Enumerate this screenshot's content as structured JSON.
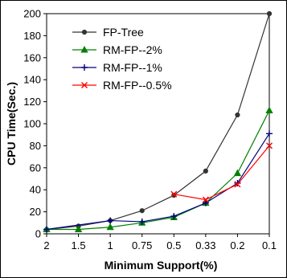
{
  "chart_data": {
    "type": "line",
    "title": "",
    "xlabel": "Minimum Support(%)",
    "ylabel": "CPU Time(Sec.)",
    "categories": [
      "2",
      "1.5",
      "1",
      "0.75",
      "0.5",
      "0.33",
      "0.2",
      "0.1"
    ],
    "ylim": [
      0,
      200
    ],
    "yticks": [
      0,
      20,
      40,
      60,
      80,
      100,
      120,
      140,
      160,
      180,
      200
    ],
    "grid": false,
    "legend_position": "top-left",
    "series": [
      {
        "name": "FP-Tree",
        "color": "#333333",
        "marker": "circle",
        "values": [
          4,
          7,
          12,
          21,
          35,
          57,
          108,
          200
        ]
      },
      {
        "name": "RM-FP--2%",
        "color": "#008000",
        "marker": "triangle",
        "values": [
          4,
          4,
          6,
          10,
          15,
          28,
          55,
          112
        ]
      },
      {
        "name": "RM-FP--1%",
        "color": "#000080",
        "marker": "plus",
        "values": [
          4,
          null,
          12,
          11,
          16,
          28,
          46,
          91
        ]
      },
      {
        "name": "RM-FP--0.5%",
        "color": "#ff0000",
        "marker": "x",
        "values": [
          null,
          null,
          null,
          null,
          36,
          31,
          45,
          80
        ]
      }
    ]
  }
}
